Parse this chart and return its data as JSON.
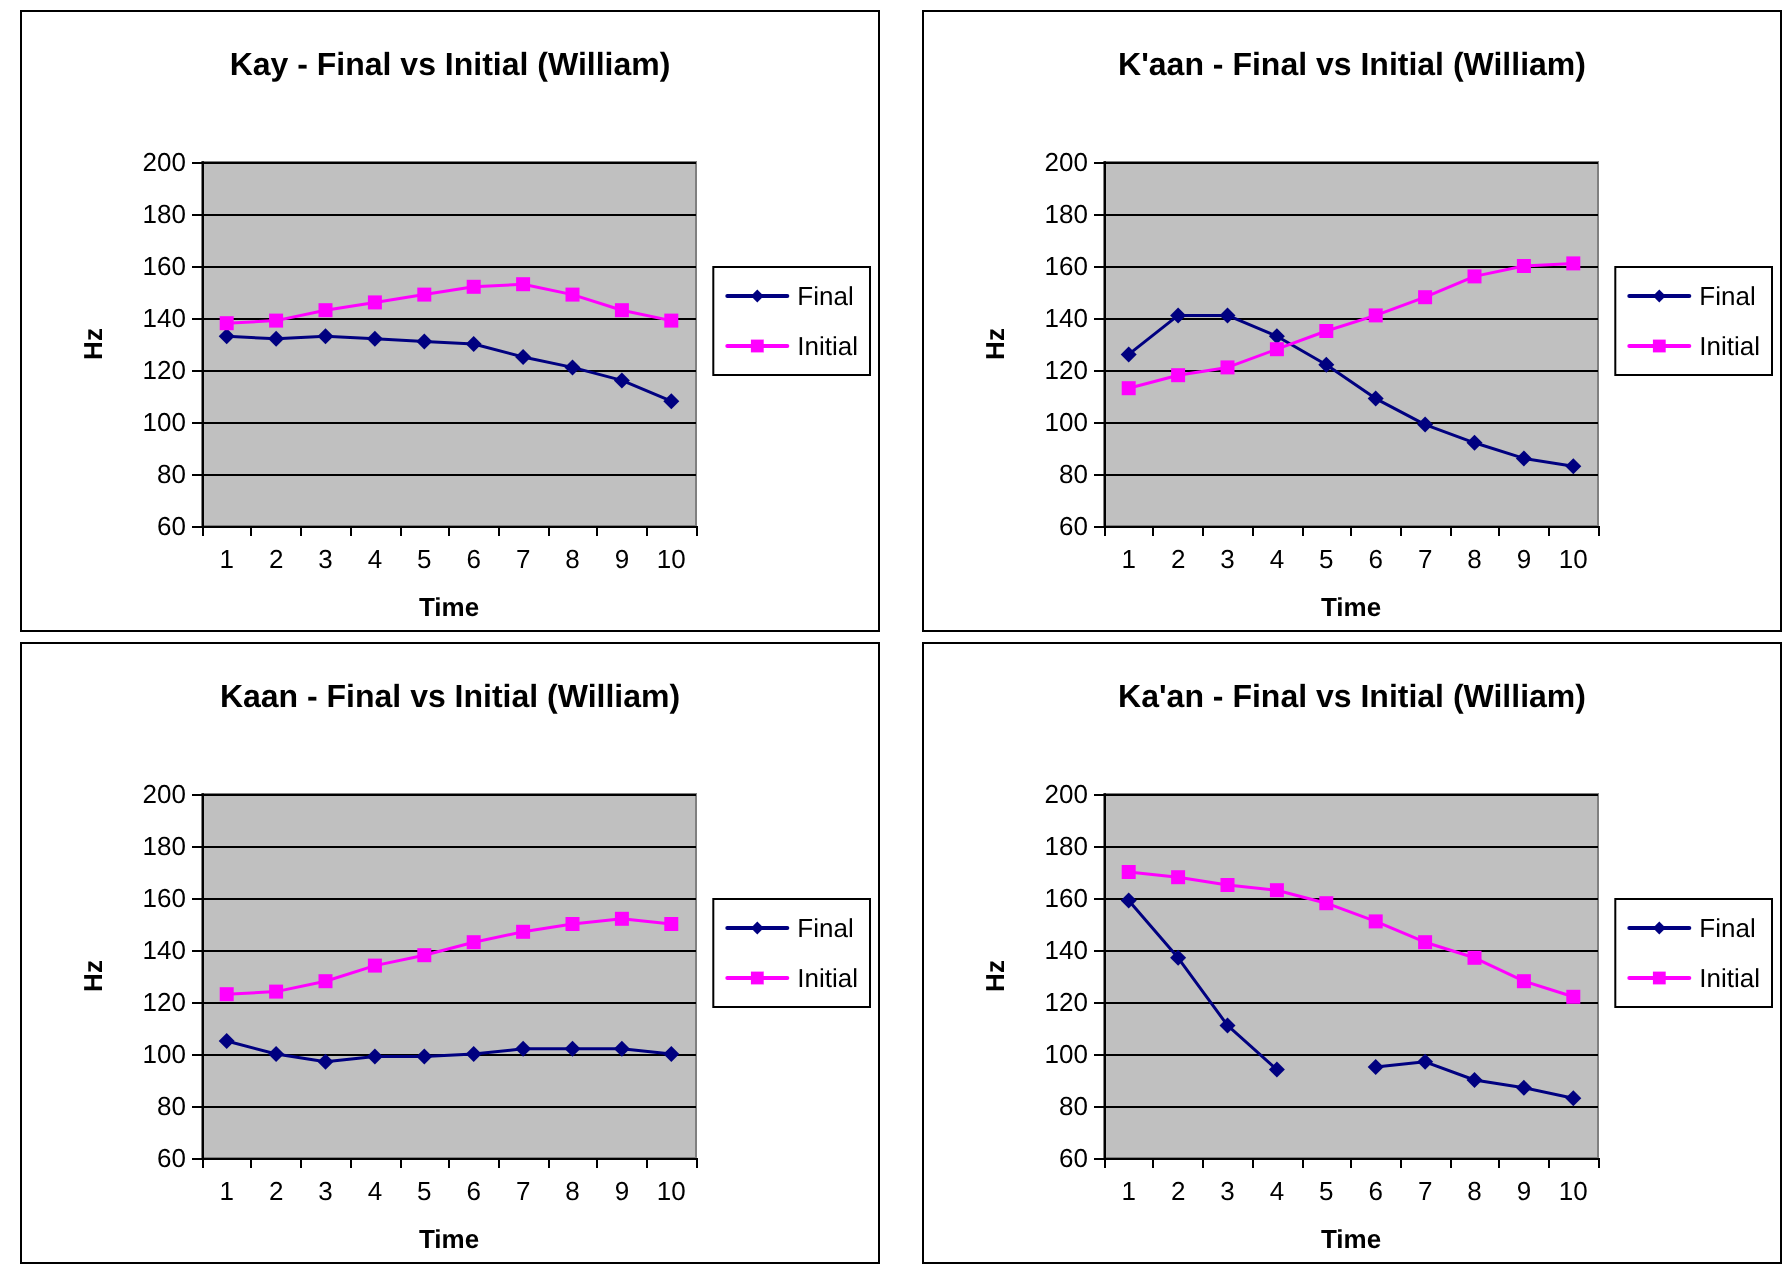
{
  "chart_data": [
    {
      "type": "line",
      "title": "Kay - Final vs Initial (William)",
      "xlabel": "Time",
      "ylabel": "Hz",
      "categories": [
        "1",
        "2",
        "3",
        "4",
        "5",
        "6",
        "7",
        "8",
        "9",
        "10"
      ],
      "ylim": [
        60,
        200
      ],
      "yticks": [
        60,
        80,
        100,
        120,
        140,
        160,
        180,
        200
      ],
      "grid": "y",
      "legend": "right",
      "line_style": "solid",
      "series": [
        {
          "name": "Final",
          "color": "#000080",
          "marker": "diamond",
          "values": [
            133,
            132,
            133,
            132,
            131,
            130,
            125,
            121,
            116,
            108
          ]
        },
        {
          "name": "Initial",
          "color": "#ff00ff",
          "marker": "square",
          "values": [
            138,
            139,
            143,
            146,
            149,
            152,
            153,
            149,
            143,
            139
          ]
        }
      ]
    },
    {
      "type": "line",
      "title": "K'aan - Final vs Initial (William)",
      "xlabel": "Time",
      "ylabel": "Hz",
      "categories": [
        "1",
        "2",
        "3",
        "4",
        "5",
        "6",
        "7",
        "8",
        "9",
        "10"
      ],
      "ylim": [
        60,
        200
      ],
      "yticks": [
        60,
        80,
        100,
        120,
        140,
        160,
        180,
        200
      ],
      "grid": "y",
      "legend": "right",
      "line_style": "solid",
      "series": [
        {
          "name": "Final",
          "color": "#000080",
          "marker": "diamond",
          "values": [
            126,
            141,
            141,
            133,
            122,
            109,
            99,
            92,
            86,
            83
          ]
        },
        {
          "name": "Initial",
          "color": "#ff00ff",
          "marker": "square",
          "values": [
            113,
            118,
            121,
            128,
            135,
            141,
            148,
            156,
            160,
            161
          ]
        }
      ]
    },
    {
      "type": "line",
      "title": "Kaan - Final vs Initial (William)",
      "xlabel": "Time",
      "ylabel": "Hz",
      "categories": [
        "1",
        "2",
        "3",
        "4",
        "5",
        "6",
        "7",
        "8",
        "9",
        "10"
      ],
      "ylim": [
        60,
        200
      ],
      "yticks": [
        60,
        80,
        100,
        120,
        140,
        160,
        180,
        200
      ],
      "grid": "y",
      "legend": "right",
      "line_style": "solid",
      "series": [
        {
          "name": "Final",
          "color": "#000080",
          "marker": "diamond",
          "values": [
            105,
            100,
            97,
            99,
            99,
            100,
            102,
            102,
            102,
            100
          ]
        },
        {
          "name": "Initial",
          "color": "#ff00ff",
          "marker": "square",
          "values": [
            123,
            124,
            128,
            134,
            138,
            143,
            147,
            150,
            152,
            150
          ]
        }
      ]
    },
    {
      "type": "line",
      "title": "Ka'an - Final vs Initial (William)",
      "xlabel": "Time",
      "ylabel": "Hz",
      "categories": [
        "1",
        "2",
        "3",
        "4",
        "5",
        "6",
        "7",
        "8",
        "9",
        "10"
      ],
      "ylim": [
        60,
        200
      ],
      "yticks": [
        60,
        80,
        100,
        120,
        140,
        160,
        180,
        200
      ],
      "grid": "y",
      "legend": "right",
      "line_style": "solid",
      "series": [
        {
          "name": "Final",
          "color": "#000080",
          "marker": "diamond",
          "values": [
            159,
            137,
            111,
            94,
            null,
            95,
            97,
            90,
            87,
            83
          ]
        },
        {
          "name": "Initial",
          "color": "#ff00ff",
          "marker": "square",
          "values": [
            170,
            168,
            165,
            163,
            158,
            151,
            143,
            137,
            128,
            122
          ]
        }
      ]
    }
  ]
}
